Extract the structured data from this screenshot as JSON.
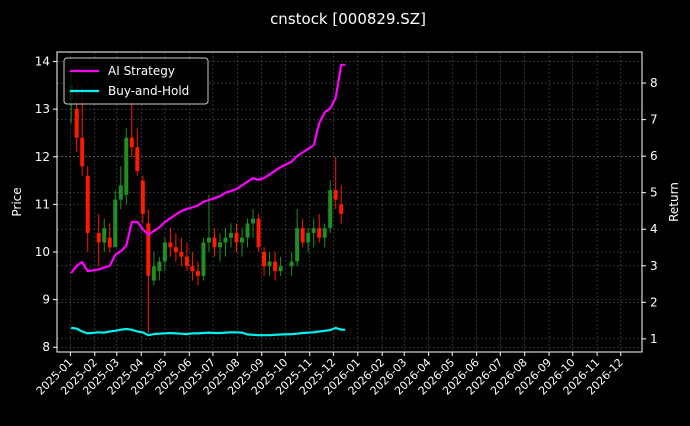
{
  "chart_data": {
    "type": "candlestick+line",
    "title": "cnstock [000829.SZ]",
    "ylabel_left": "Price",
    "ylabel_right": "Return",
    "ylim_left": [
      7.9,
      14.2
    ],
    "ylim_right": [
      0.64,
      8.85
    ],
    "xlim": [
      "2024-12-15",
      "2026-12-28"
    ],
    "yticks_left": [
      8,
      9,
      10,
      11,
      12,
      13,
      14
    ],
    "yticks_right": [
      1,
      2,
      3,
      4,
      5,
      6,
      7,
      8
    ],
    "xticks": [
      "2025-01",
      "2025-02",
      "2025-03",
      "2025-04",
      "2025-05",
      "2025-06",
      "2025-07",
      "2025-08",
      "2025-09",
      "2025-10",
      "2025-11",
      "2025-12",
      "2026-01",
      "2026-02",
      "2026-03",
      "2026-04",
      "2026-05",
      "2026-06",
      "2026-07",
      "2026-08",
      "2026-09",
      "2026-10",
      "2026-11",
      "2026-12"
    ],
    "grid": true,
    "legend_position": "top-left",
    "colors": {
      "up": "#1f8f1f",
      "down": "#ff1a00",
      "ai": "#ff00ff",
      "bh": "#00f0f0",
      "grid": "#555555"
    },
    "candles": [
      [
        "2025-01-02",
        13.2,
        13.8,
        12.7,
        13.5
      ],
      [
        "2025-01-09",
        13.0,
        13.6,
        12.1,
        12.4
      ],
      [
        "2025-01-16",
        12.4,
        13.5,
        11.6,
        11.8
      ],
      [
        "2025-01-23",
        11.6,
        11.8,
        10.0,
        10.4
      ],
      [
        "2025-02-06",
        10.4,
        10.8,
        9.7,
        10.2
      ],
      [
        "2025-02-13",
        10.2,
        10.7,
        10.0,
        10.5
      ],
      [
        "2025-02-20",
        10.3,
        10.6,
        10.0,
        10.1
      ],
      [
        "2025-02-27",
        10.1,
        11.3,
        10.1,
        11.1
      ],
      [
        "2025-03-06",
        11.1,
        11.8,
        10.9,
        11.4
      ],
      [
        "2025-03-13",
        11.2,
        12.6,
        11.0,
        12.4
      ],
      [
        "2025-03-20",
        12.4,
        13.2,
        12.0,
        12.2
      ],
      [
        "2025-03-27",
        12.2,
        12.6,
        11.6,
        11.7
      ],
      [
        "2025-04-03",
        11.5,
        11.6,
        10.6,
        10.8
      ],
      [
        "2025-04-10",
        10.6,
        10.9,
        8.3,
        9.5
      ],
      [
        "2025-04-17",
        9.4,
        10.0,
        9.3,
        9.7
      ],
      [
        "2025-04-24",
        9.6,
        9.9,
        9.4,
        9.8
      ],
      [
        "2025-05-01",
        9.8,
        10.3,
        9.6,
        10.2
      ],
      [
        "2025-05-08",
        10.2,
        10.5,
        9.9,
        10.1
      ],
      [
        "2025-05-15",
        10.1,
        10.4,
        9.8,
        10.0
      ],
      [
        "2025-05-22",
        10.0,
        10.3,
        9.7,
        9.9
      ],
      [
        "2025-05-29",
        9.9,
        10.2,
        9.6,
        9.7
      ],
      [
        "2025-06-05",
        9.7,
        10.0,
        9.4,
        9.6
      ],
      [
        "2025-06-12",
        9.6,
        9.8,
        9.3,
        9.5
      ],
      [
        "2025-06-19",
        9.5,
        10.3,
        9.4,
        10.2
      ],
      [
        "2025-06-26",
        10.2,
        11.2,
        10.0,
        10.3
      ],
      [
        "2025-07-03",
        10.3,
        10.5,
        9.9,
        10.1
      ],
      [
        "2025-07-10",
        10.1,
        10.4,
        9.8,
        10.2
      ],
      [
        "2025-07-17",
        10.2,
        10.5,
        9.9,
        10.3
      ],
      [
        "2025-07-24",
        10.3,
        10.6,
        10.1,
        10.4
      ],
      [
        "2025-07-31",
        10.4,
        10.6,
        10.0,
        10.2
      ],
      [
        "2025-08-07",
        10.2,
        10.5,
        9.9,
        10.3
      ],
      [
        "2025-08-14",
        10.3,
        10.7,
        10.1,
        10.6
      ],
      [
        "2025-08-21",
        10.6,
        10.9,
        10.3,
        10.7
      ],
      [
        "2025-08-28",
        10.7,
        10.8,
        10.0,
        10.1
      ],
      [
        "2025-09-04",
        10.0,
        10.1,
        9.5,
        9.7
      ],
      [
        "2025-09-11",
        9.7,
        10.0,
        9.5,
        9.8
      ],
      [
        "2025-09-18",
        9.8,
        10.0,
        9.4,
        9.6
      ],
      [
        "2025-09-25",
        9.6,
        9.9,
        9.5,
        9.7
      ],
      [
        "2025-10-09",
        9.7,
        10.0,
        9.5,
        9.8
      ],
      [
        "2025-10-16",
        9.8,
        10.9,
        9.7,
        10.5
      ],
      [
        "2025-10-23",
        10.5,
        10.7,
        10.1,
        10.2
      ],
      [
        "2025-10-30",
        10.2,
        10.5,
        10.0,
        10.4
      ],
      [
        "2025-11-06",
        10.4,
        10.7,
        10.1,
        10.5
      ],
      [
        "2025-11-13",
        10.5,
        10.8,
        10.2,
        10.3
      ],
      [
        "2025-11-20",
        10.3,
        10.6,
        10.1,
        10.5
      ],
      [
        "2025-11-27",
        10.5,
        11.5,
        10.4,
        11.3
      ],
      [
        "2025-12-04",
        11.3,
        12.0,
        10.9,
        11.1
      ],
      [
        "2025-12-11",
        11.0,
        11.4,
        10.6,
        10.8
      ]
    ],
    "series": [
      {
        "name": "AI Strategy",
        "values": [
          2.8,
          3.0,
          3.1,
          2.85,
          2.9,
          2.95,
          3.0,
          3.3,
          3.4,
          3.55,
          4.2,
          4.2,
          4.0,
          3.85,
          3.95,
          4.05,
          4.2,
          4.3,
          4.4,
          4.5,
          4.55,
          4.6,
          4.65,
          4.75,
          4.8,
          4.85,
          4.9,
          5.0,
          5.05,
          5.1,
          5.2,
          5.3,
          5.4,
          5.35,
          5.4,
          5.5,
          5.6,
          5.7,
          5.85,
          6.0,
          6.1,
          6.2,
          6.3,
          6.9,
          7.2,
          7.3,
          7.6,
          8.5
        ]
      },
      {
        "name": "Buy-and-Hold",
        "values": [
          1.3,
          1.28,
          1.2,
          1.15,
          1.18,
          1.17,
          1.2,
          1.22,
          1.25,
          1.27,
          1.25,
          1.2,
          1.18,
          1.1,
          1.13,
          1.14,
          1.15,
          1.16,
          1.15,
          1.14,
          1.13,
          1.15,
          1.15,
          1.16,
          1.17,
          1.16,
          1.16,
          1.17,
          1.18,
          1.18,
          1.17,
          1.12,
          1.11,
          1.1,
          1.1,
          1.1,
          1.11,
          1.12,
          1.13,
          1.14,
          1.16,
          1.17,
          1.18,
          1.2,
          1.22,
          1.24,
          1.3,
          1.25
        ]
      }
    ]
  }
}
